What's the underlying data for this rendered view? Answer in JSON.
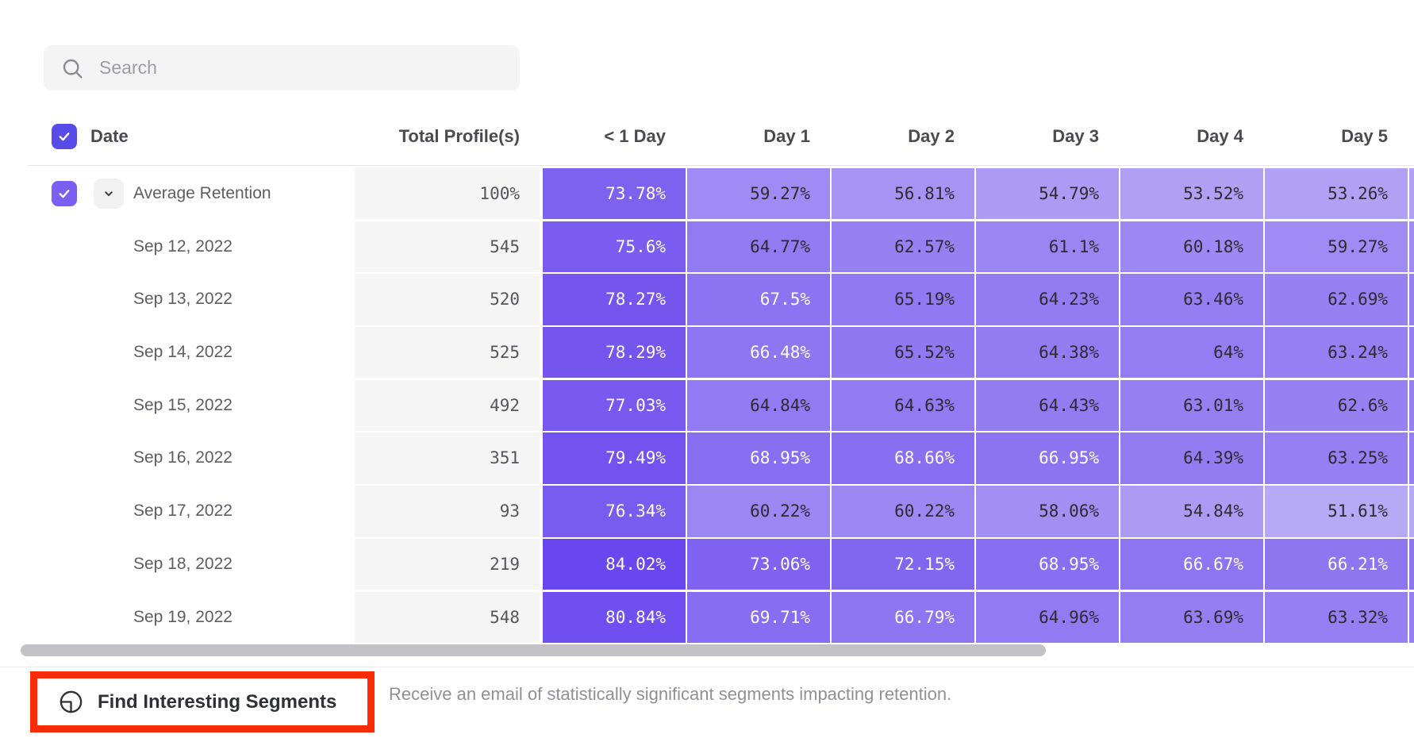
{
  "search": {
    "placeholder": "Search"
  },
  "table": {
    "columns": [
      "Date",
      "Total Profile(s)",
      "< 1 Day",
      "Day 1",
      "Day 2",
      "Day 3",
      "Day 4",
      "Day 5"
    ],
    "rows": [
      {
        "label": "Average Retention",
        "expandable": true,
        "checked": true,
        "total": "100%",
        "values": [
          "73.78%",
          "59.27%",
          "56.81%",
          "54.79%",
          "53.52%",
          "53.26%"
        ]
      },
      {
        "label": "Sep 12, 2022",
        "expandable": false,
        "checked": false,
        "total": "545",
        "values": [
          "75.6%",
          "64.77%",
          "62.57%",
          "61.1%",
          "60.18%",
          "59.27%"
        ]
      },
      {
        "label": "Sep 13, 2022",
        "expandable": false,
        "checked": false,
        "total": "520",
        "values": [
          "78.27%",
          "67.5%",
          "65.19%",
          "64.23%",
          "63.46%",
          "62.69%"
        ]
      },
      {
        "label": "Sep 14, 2022",
        "expandable": false,
        "checked": false,
        "total": "525",
        "values": [
          "78.29%",
          "66.48%",
          "65.52%",
          "64.38%",
          "64%",
          "63.24%"
        ]
      },
      {
        "label": "Sep 15, 2022",
        "expandable": false,
        "checked": false,
        "total": "492",
        "values": [
          "77.03%",
          "64.84%",
          "64.63%",
          "64.43%",
          "63.01%",
          "62.6%"
        ]
      },
      {
        "label": "Sep 16, 2022",
        "expandable": false,
        "checked": false,
        "total": "351",
        "values": [
          "79.49%",
          "68.95%",
          "68.66%",
          "66.95%",
          "64.39%",
          "63.25%"
        ]
      },
      {
        "label": "Sep 17, 2022",
        "expandable": false,
        "checked": false,
        "total": "93",
        "values": [
          "76.34%",
          "60.22%",
          "60.22%",
          "58.06%",
          "54.84%",
          "51.61%"
        ]
      },
      {
        "label": "Sep 18, 2022",
        "expandable": false,
        "checked": false,
        "total": "219",
        "values": [
          "84.02%",
          "73.06%",
          "72.15%",
          "68.95%",
          "66.67%",
          "66.21%"
        ]
      },
      {
        "label": "Sep 19, 2022",
        "expandable": false,
        "checked": false,
        "total": "548",
        "values": [
          "80.84%",
          "69.71%",
          "66.79%",
          "64.96%",
          "63.69%",
          "63.32%"
        ]
      }
    ]
  },
  "footer": {
    "button_label": "Find Interesting Segments",
    "description": "Receive an email of statistically significant segments impacting retention."
  },
  "colors": {
    "checkbox_header": "#584ce8",
    "checkbox_row": "#7b5ef2",
    "annotation_red": "#fa2b05",
    "cell_text_dark": "#2c2b31",
    "cell_text_light": "#ffffff",
    "total_cell_bg": "#f5f5f6",
    "heatmap": {
      "min_value": 51,
      "max_value": 85,
      "min_color": "#b9adf5",
      "max_color": "#6745ee",
      "white_text_threshold": 66
    }
  }
}
